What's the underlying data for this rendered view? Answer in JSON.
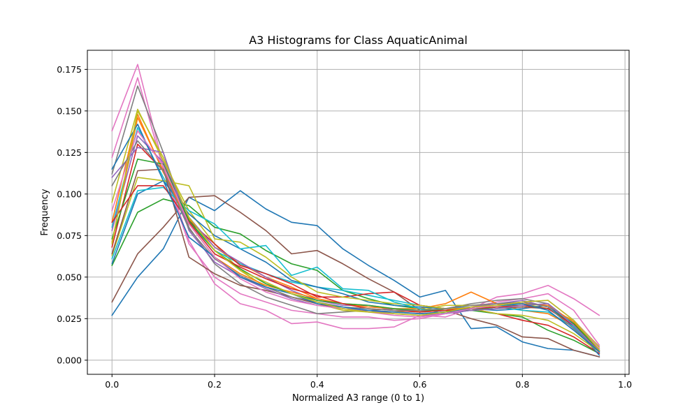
{
  "chart_data": {
    "type": "line",
    "title": "A3 Histograms for Class AquaticAnimal",
    "xlabel": "Normalized A3 range (0 to 1)",
    "ylabel": "Frequency",
    "xlim": [
      -0.048,
      1.008
    ],
    "ylim": [
      -0.0085,
      0.1865
    ],
    "xticks": [
      0.0,
      0.2,
      0.4,
      0.6,
      0.8,
      1.0
    ],
    "xtick_labels": [
      "0.0",
      "0.2",
      "0.4",
      "0.6",
      "0.8",
      "1.0"
    ],
    "yticks": [
      0.0,
      0.025,
      0.05,
      0.075,
      0.1,
      0.125,
      0.15,
      0.175
    ],
    "ytick_labels": [
      "0.000",
      "0.025",
      "0.050",
      "0.075",
      "0.100",
      "0.125",
      "0.150",
      "0.175"
    ],
    "grid": true,
    "legend": false,
    "x": [
      0.0,
      0.05,
      0.1,
      0.15,
      0.2,
      0.25,
      0.3,
      0.35,
      0.4,
      0.45,
      0.5,
      0.55,
      0.6,
      0.65,
      0.7,
      0.75,
      0.8,
      0.85,
      0.9,
      0.95
    ],
    "series": [
      {
        "color": "#1f77b4",
        "values": [
          0.027,
          0.05,
          0.067,
          0.098,
          0.09,
          0.102,
          0.091,
          0.083,
          0.081,
          0.067,
          0.057,
          0.048,
          0.038,
          0.042,
          0.019,
          0.02,
          0.011,
          0.007,
          0.006,
          0.002
        ]
      },
      {
        "color": "#8c564b",
        "values": [
          0.035,
          0.064,
          0.08,
          0.098,
          0.099,
          0.089,
          0.078,
          0.064,
          0.066,
          0.058,
          0.049,
          0.041,
          0.03,
          0.03,
          0.025,
          0.021,
          0.014,
          0.013,
          0.006,
          0.002
        ]
      },
      {
        "color": "#2ca02c",
        "values": [
          0.057,
          0.089,
          0.097,
          0.093,
          0.08,
          0.076,
          0.066,
          0.058,
          0.054,
          0.042,
          0.037,
          0.033,
          0.031,
          0.03,
          0.03,
          0.028,
          0.026,
          0.018,
          0.012,
          0.004
        ]
      },
      {
        "color": "#e377c2",
        "values": [
          0.138,
          0.178,
          0.117,
          0.072,
          0.046,
          0.034,
          0.03,
          0.022,
          0.023,
          0.019,
          0.019,
          0.02,
          0.027,
          0.026,
          0.031,
          0.038,
          0.04,
          0.045,
          0.037,
          0.027
        ]
      },
      {
        "color": "#e377c2",
        "values": [
          0.122,
          0.17,
          0.115,
          0.07,
          0.05,
          0.04,
          0.035,
          0.03,
          0.028,
          0.026,
          0.026,
          0.024,
          0.025,
          0.028,
          0.032,
          0.035,
          0.037,
          0.04,
          0.03,
          0.009
        ]
      },
      {
        "color": "#7f7f7f",
        "values": [
          0.112,
          0.165,
          0.125,
          0.08,
          0.058,
          0.046,
          0.038,
          0.033,
          0.028,
          0.029,
          0.03,
          0.031,
          0.029,
          0.031,
          0.034,
          0.036,
          0.037,
          0.034,
          0.022,
          0.007
        ]
      },
      {
        "color": "#bcbd22",
        "values": [
          0.095,
          0.151,
          0.12,
          0.09,
          0.07,
          0.054,
          0.044,
          0.038,
          0.034,
          0.03,
          0.029,
          0.029,
          0.03,
          0.033,
          0.033,
          0.034,
          0.034,
          0.031,
          0.024,
          0.008
        ]
      },
      {
        "color": "#ff7f0e",
        "values": [
          0.083,
          0.148,
          0.113,
          0.085,
          0.068,
          0.058,
          0.05,
          0.044,
          0.037,
          0.034,
          0.033,
          0.031,
          0.031,
          0.034,
          0.041,
          0.034,
          0.03,
          0.028,
          0.02,
          0.006
        ]
      },
      {
        "color": "#17becf",
        "values": [
          0.08,
          0.14,
          0.11,
          0.083,
          0.066,
          0.058,
          0.052,
          0.047,
          0.044,
          0.042,
          0.039,
          0.036,
          0.033,
          0.031,
          0.032,
          0.033,
          0.033,
          0.031,
          0.023,
          0.006
        ]
      },
      {
        "color": "#d62728",
        "values": [
          0.068,
          0.13,
          0.114,
          0.084,
          0.07,
          0.057,
          0.052,
          0.046,
          0.038,
          0.038,
          0.04,
          0.041,
          0.033,
          0.031,
          0.031,
          0.028,
          0.024,
          0.021,
          0.014,
          0.004
        ]
      },
      {
        "color": "#9467bd",
        "values": [
          0.078,
          0.135,
          0.119,
          0.086,
          0.068,
          0.059,
          0.05,
          0.042,
          0.036,
          0.033,
          0.033,
          0.03,
          0.029,
          0.03,
          0.032,
          0.034,
          0.036,
          0.032,
          0.019,
          0.005
        ]
      },
      {
        "color": "#1f77b4",
        "values": [
          0.058,
          0.1,
          0.108,
          0.088,
          0.075,
          0.067,
          0.059,
          0.048,
          0.044,
          0.04,
          0.035,
          0.033,
          0.032,
          0.031,
          0.031,
          0.03,
          0.031,
          0.033,
          0.02,
          0.003
        ]
      },
      {
        "color": "#bcbd22",
        "values": [
          0.063,
          0.11,
          0.108,
          0.105,
          0.073,
          0.071,
          0.062,
          0.05,
          0.041,
          0.038,
          0.036,
          0.034,
          0.033,
          0.031,
          0.031,
          0.028,
          0.027,
          0.024,
          0.016,
          0.005
        ]
      },
      {
        "color": "#17becf",
        "values": [
          0.061,
          0.102,
          0.104,
          0.09,
          0.082,
          0.067,
          0.069,
          0.051,
          0.056,
          0.043,
          0.042,
          0.035,
          0.031,
          0.028,
          0.03,
          0.032,
          0.03,
          0.029,
          0.02,
          0.005
        ]
      },
      {
        "color": "#8c564b",
        "values": [
          0.064,
          0.114,
          0.115,
          0.062,
          0.052,
          0.045,
          0.042,
          0.038,
          0.034,
          0.031,
          0.03,
          0.029,
          0.028,
          0.029,
          0.03,
          0.031,
          0.032,
          0.031,
          0.022,
          0.006
        ]
      },
      {
        "color": "#ff7f0e",
        "values": [
          0.071,
          0.146,
          0.114,
          0.082,
          0.062,
          0.052,
          0.045,
          0.041,
          0.037,
          0.034,
          0.032,
          0.031,
          0.029,
          0.03,
          0.032,
          0.033,
          0.034,
          0.033,
          0.023,
          0.006
        ]
      },
      {
        "color": "#2ca02c",
        "values": [
          0.073,
          0.121,
          0.118,
          0.084,
          0.066,
          0.055,
          0.046,
          0.04,
          0.036,
          0.034,
          0.033,
          0.031,
          0.03,
          0.03,
          0.03,
          0.032,
          0.033,
          0.031,
          0.022,
          0.006
        ]
      },
      {
        "color": "#d62728",
        "values": [
          0.083,
          0.105,
          0.105,
          0.083,
          0.064,
          0.056,
          0.049,
          0.043,
          0.039,
          0.034,
          0.031,
          0.03,
          0.029,
          0.03,
          0.031,
          0.032,
          0.033,
          0.031,
          0.021,
          0.005
        ]
      },
      {
        "color": "#9467bd",
        "values": [
          0.11,
          0.128,
          0.125,
          0.078,
          0.059,
          0.05,
          0.043,
          0.037,
          0.033,
          0.031,
          0.03,
          0.028,
          0.027,
          0.028,
          0.03,
          0.031,
          0.033,
          0.034,
          0.021,
          0.005
        ]
      },
      {
        "color": "#7f7f7f",
        "values": [
          0.105,
          0.132,
          0.114,
          0.079,
          0.061,
          0.051,
          0.044,
          0.038,
          0.035,
          0.032,
          0.031,
          0.03,
          0.03,
          0.031,
          0.033,
          0.034,
          0.035,
          0.032,
          0.019,
          0.005
        ]
      },
      {
        "color": "#1f77b4",
        "values": [
          0.115,
          0.142,
          0.108,
          0.074,
          0.062,
          0.05,
          0.044,
          0.04,
          0.034,
          0.032,
          0.03,
          0.029,
          0.028,
          0.029,
          0.031,
          0.033,
          0.034,
          0.03,
          0.018,
          0.005
        ]
      },
      {
        "color": "#e377c2",
        "values": [
          0.09,
          0.138,
          0.117,
          0.082,
          0.062,
          0.049,
          0.041,
          0.036,
          0.033,
          0.031,
          0.029,
          0.027,
          0.026,
          0.028,
          0.031,
          0.033,
          0.035,
          0.036,
          0.024,
          0.007
        ]
      },
      {
        "color": "#bcbd22",
        "values": [
          0.07,
          0.15,
          0.122,
          0.086,
          0.066,
          0.054,
          0.047,
          0.04,
          0.035,
          0.031,
          0.029,
          0.028,
          0.027,
          0.029,
          0.032,
          0.033,
          0.035,
          0.036,
          0.024,
          0.006
        ]
      }
    ]
  }
}
